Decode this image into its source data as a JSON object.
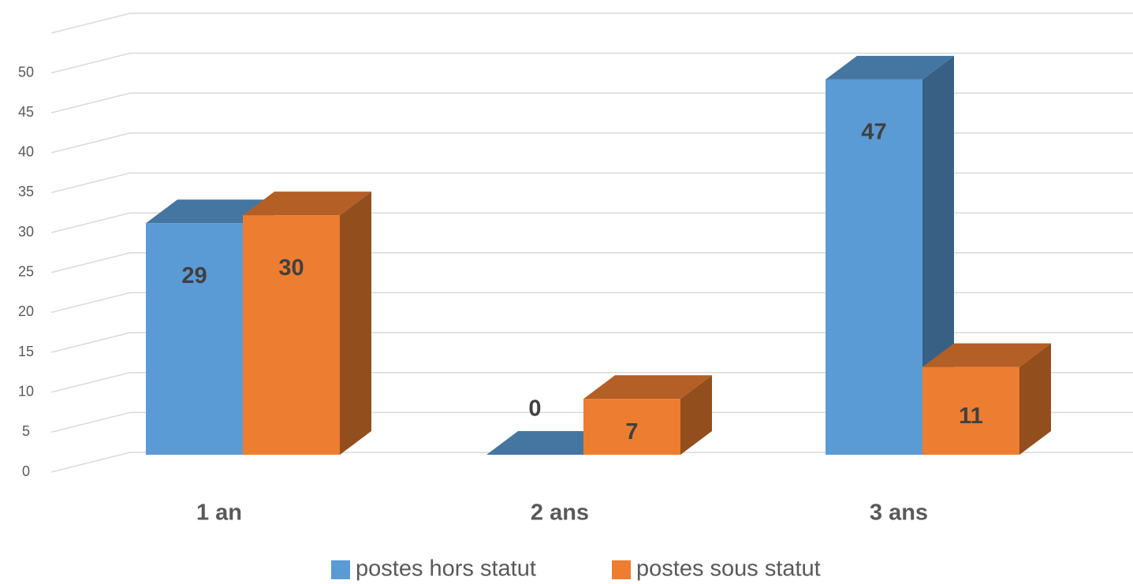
{
  "chart_data": {
    "type": "bar3d",
    "categories": [
      "1 an",
      "2 ans",
      "3 ans"
    ],
    "series": [
      {
        "name": "postes hors statut",
        "color": "#5b9bd5",
        "values": [
          29,
          0,
          47
        ]
      },
      {
        "name": "postes sous statut",
        "color": "#ed7d31",
        "values": [
          30,
          7,
          11
        ]
      }
    ],
    "ylim": [
      0,
      55
    ],
    "yticks": [
      0,
      5,
      10,
      15,
      20,
      25,
      30,
      35,
      40,
      45,
      50
    ],
    "grid": true
  }
}
